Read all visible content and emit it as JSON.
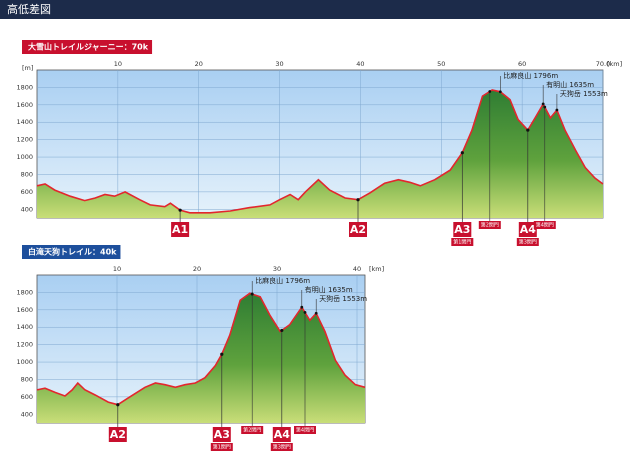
{
  "header": {
    "title": "高低差図"
  },
  "chart_data": [
    {
      "type": "area",
      "title": "大雪山トレイルジャーニー：70k",
      "title_color": "#c8102e",
      "x": [
        0,
        1,
        2.2,
        4.1,
        5.9,
        7.2,
        8.4,
        9.6,
        10.9,
        12.7,
        14,
        15.8,
        16.5,
        17.7,
        18.9,
        21.4,
        23.9,
        26.3,
        28.8,
        30,
        31.3,
        32.3,
        33.2,
        34.8,
        36.2,
        38.1,
        39.7,
        41.2,
        43,
        44.7,
        46.1,
        47.4,
        49.2,
        51.1,
        52.6,
        53.8,
        55.1,
        56.3,
        57.3,
        58.5,
        59.5,
        60.7,
        61.6,
        62.6,
        63.5,
        64.3,
        65.3,
        66.6,
        67.8,
        69,
        70
      ],
      "values": [
        670,
        690,
        620,
        550,
        500,
        530,
        570,
        550,
        600,
        510,
        450,
        430,
        470,
        390,
        360,
        360,
        380,
        420,
        450,
        510,
        570,
        510,
        600,
        740,
        620,
        530,
        510,
        590,
        700,
        740,
        710,
        670,
        740,
        850,
        1050,
        1310,
        1700,
        1770,
        1750,
        1660,
        1430,
        1310,
        1450,
        1610,
        1450,
        1540,
        1310,
        1080,
        880,
        760,
        690
      ],
      "color": "#e3262d",
      "xlim": [
        0,
        70
      ],
      "xticks": [
        10,
        20,
        30,
        40,
        50,
        60,
        {
          "value": 70,
          "label": "70.0"
        }
      ],
      "x_unit": "[km]",
      "ylim": [
        300,
        2000
      ],
      "yticks": [
        400,
        600,
        800,
        1000,
        1200,
        1400,
        1600,
        1800
      ],
      "y_unit": "[m]",
      "grid": true,
      "aid_stations": [
        {
          "label": "A1",
          "x": 17.7
        },
        {
          "label": "A2",
          "x": 39.7
        },
        {
          "label": "A3",
          "x": 52.6
        },
        {
          "label": "A4",
          "x": 60.7
        }
      ],
      "checkpoints": [
        {
          "label": "第1関門",
          "x": 52.6
        },
        {
          "label": "第2関門",
          "x": 56.0
        },
        {
          "label": "第3関門",
          "x": 60.7
        },
        {
          "label": "第4関門",
          "x": 62.8
        }
      ],
      "peaks": [
        {
          "label": "比麻良山 1796m",
          "x": 57.3
        },
        {
          "label": "有明山 1635m",
          "x": 62.6
        },
        {
          "label": "天狗岳 1553m",
          "x": 64.3
        }
      ]
    },
    {
      "type": "area",
      "title": "白滝天狗トレイル：40k",
      "title_color": "#1d4f9c",
      "x": [
        0,
        1,
        2.3,
        3.5,
        4.4,
        5.1,
        6,
        7.3,
        8.9,
        10.1,
        11.6,
        13.5,
        14.8,
        16,
        17.3,
        18.5,
        19.8,
        21,
        22.3,
        23.1,
        24.1,
        25.4,
        26.6,
        27.9,
        29.1,
        30.4,
        31.6,
        33.1,
        34.1,
        34.9,
        36,
        37.3,
        38.5,
        39.8,
        41
      ],
      "values": [
        680,
        700,
        650,
        610,
        680,
        760,
        680,
        620,
        540,
        510,
        600,
        710,
        760,
        740,
        710,
        740,
        760,
        820,
        960,
        1090,
        1310,
        1710,
        1790,
        1750,
        1540,
        1350,
        1430,
        1630,
        1480,
        1560,
        1350,
        1020,
        850,
        740,
        710
      ],
      "color": "#e3262d",
      "xlim": [
        0,
        41
      ],
      "xticks": [
        10,
        20,
        30,
        40
      ],
      "x_unit": "[km]",
      "ylim": [
        300,
        2000
      ],
      "yticks": [
        400,
        600,
        800,
        1000,
        1200,
        1400,
        1600,
        1800
      ],
      "grid": true,
      "aid_stations": [
        {
          "label": "A2",
          "x": 10.1
        },
        {
          "label": "A3",
          "x": 23.1
        },
        {
          "label": "A4",
          "x": 30.6
        }
      ],
      "checkpoints": [
        {
          "label": "第1関門",
          "x": 23.1
        },
        {
          "label": "第2関門",
          "x": 26.9
        },
        {
          "label": "第3関門",
          "x": 30.6
        },
        {
          "label": "第4関門",
          "x": 33.5
        }
      ],
      "peaks": [
        {
          "label": "比麻良山 1796m",
          "x": 26.9
        },
        {
          "label": "有明山 1635m",
          "x": 33.1
        },
        {
          "label": "天狗岳 1553m",
          "x": 34.9
        }
      ]
    }
  ]
}
